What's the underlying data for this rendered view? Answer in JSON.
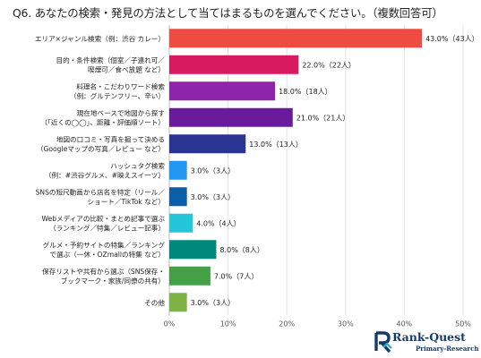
{
  "title": "Q6. あなたの検索・発見の方法として当てはまるものを選んでください。（複数回答可）",
  "brand": {
    "name": "Rank-Quest",
    "sub": "Primary-Research"
  },
  "chart_data": {
    "type": "bar",
    "orientation": "horizontal",
    "categories": [
      [
        "エリア×ジャンル検索（例：渋谷 カレー）"
      ],
      [
        "目的・条件検索（個室／子連れ可／",
        "喫煙可／食べ放題 など）"
      ],
      [
        "料理名・こだわりワード検索",
        "（例：グルテンフリー、辛い）"
      ],
      [
        "現在地ベースで地図から探す",
        "（「近くの◯◯」、距離・評価順ソート）"
      ],
      [
        "地図の口コミ・写真を掘って決める",
        "（Googleマップの写真／レビュー など）"
      ],
      [
        "ハッシュタグ検索",
        "（例：#渋谷グルメ、#映えスイーツ）"
      ],
      [
        "SNSの短尺動画から店名を特定（リール／",
        "ショート／TikTok など）"
      ],
      [
        "Webメディアの比較・まとめ記事で選ぶ",
        "（ランキング／特集／レビュー記事）"
      ],
      [
        "グルメ・予約サイトの特集／ランキング",
        "で選ぶ（一休・OZmallの特集 など）"
      ],
      [
        "保存リストや共有から選ぶ（SNS保存・",
        "ブックマーク・家族/同僚の共有）"
      ],
      [
        "その他"
      ]
    ],
    "values": [
      43.0,
      22.0,
      18.0,
      21.0,
      13.0,
      3.0,
      3.0,
      4.0,
      8.0,
      7.0,
      3.0
    ],
    "labels": [
      "43.0%（43人）",
      "22.0%（22人）",
      "18.0%（18人）",
      "21.0%（21人）",
      "13.0%（13人）",
      "3.0%（3人）",
      "3.0%（3人）",
      "4.0%（4人）",
      "8.0%（8人）",
      "7.0%（7人）",
      "3.0%（3人）"
    ],
    "colors": [
      "#ee4b43",
      "#d81b60",
      "#8e24aa",
      "#6a1b9a",
      "#283593",
      "#2196f3",
      "#0d5ea8",
      "#26c6da",
      "#00897b",
      "#43a047",
      "#7cb342"
    ],
    "xlim": [
      0,
      50
    ],
    "xticks": [
      "0%",
      "10%",
      "20%",
      "30%",
      "40%",
      "50%"
    ],
    "grid": true
  }
}
